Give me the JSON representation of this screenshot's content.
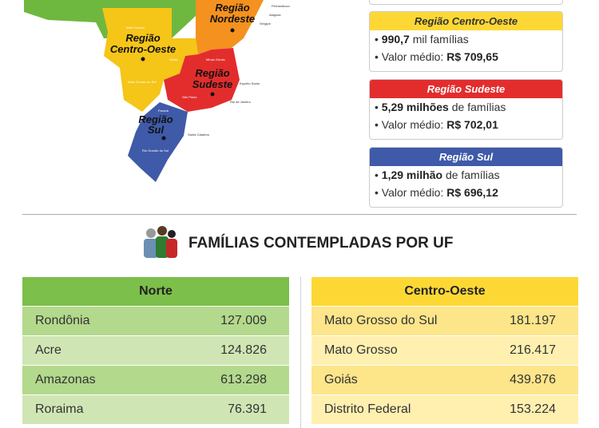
{
  "map": {
    "regions": [
      {
        "lines": [
          "Região",
          "Nordeste"
        ]
      },
      {
        "lines": [
          "Região",
          "Centro-Oeste"
        ]
      },
      {
        "lines": [
          "Região",
          "Sudeste"
        ]
      },
      {
        "lines": [
          "Região",
          "Sul"
        ]
      }
    ],
    "states": [
      "Mato Grosso",
      "Goiás",
      "Mato Grosso do Sul",
      "Minas Gerais",
      "Espírito Santo",
      "Rio de Janeiro",
      "São Paulo",
      "Paraná",
      "Santa Catarina",
      "Rio Grande do Sul",
      "Pernambuco",
      "Alagoas",
      "Sergipe"
    ]
  },
  "boxes": [
    {
      "title": "Região Centro-Oeste",
      "families_bold": "990,7",
      "families_text": "mil famílias",
      "value_label": "Valor médio:",
      "value": "R$ 709,65"
    },
    {
      "title": "Região Sudeste",
      "families_bold": "5,29 milhões",
      "families_text": "de famílias",
      "value_label": "Valor médio:",
      "value": "R$ 702,01"
    },
    {
      "title": "Região Sul",
      "families_bold": "1,29 milhão",
      "families_text": "de famílias",
      "value_label": "Valor médio:",
      "value": "R$ 696,12"
    }
  ],
  "heading": "FAMÍLIAS CONTEMPLADAS POR UF",
  "tables": [
    {
      "title": "Norte",
      "rows": [
        [
          "Rondônia",
          "127.009"
        ],
        [
          "Acre",
          "124.826"
        ],
        [
          "Amazonas",
          "613.298"
        ],
        [
          "Roraima",
          "76.391"
        ]
      ]
    },
    {
      "title": "Centro-Oeste",
      "rows": [
        [
          "Mato Grosso do Sul",
          "181.197"
        ],
        [
          "Mato Grosso",
          "216.417"
        ],
        [
          "Goiás",
          "439.876"
        ],
        [
          "Distrito Federal",
          "153.224"
        ]
      ]
    }
  ]
}
